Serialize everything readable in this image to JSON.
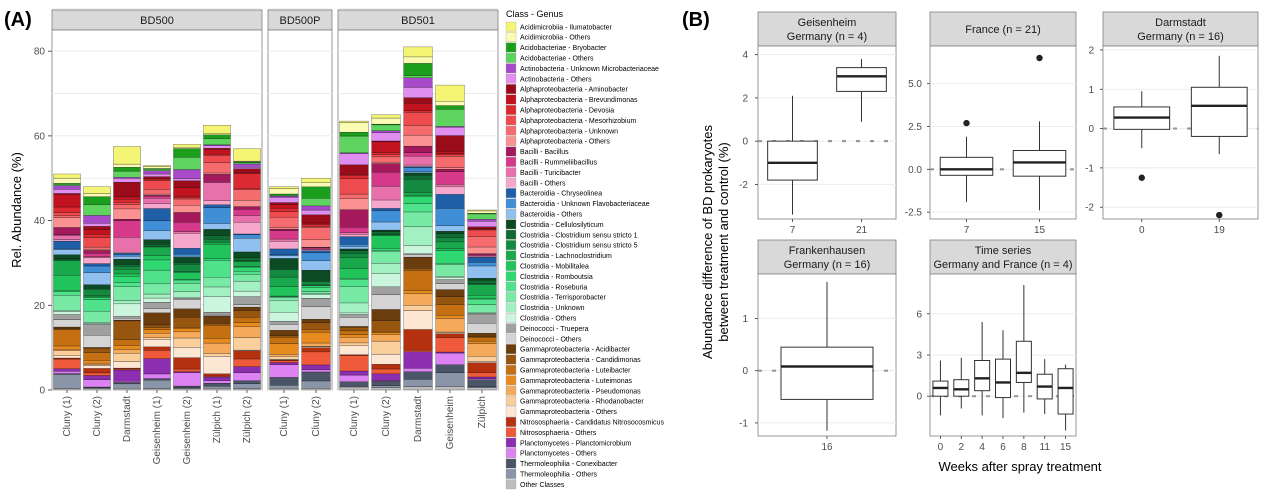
{
  "panel_a": {
    "label": "(A)",
    "ylabel": "Rel. Abundance (%)",
    "legend_title": "Class - Genus",
    "yticks": [
      0,
      20,
      40,
      60,
      80
    ],
    "ylim": [
      0,
      85
    ],
    "facets": [
      "BD500",
      "BD500P",
      "BD501"
    ]
  },
  "panel_b": {
    "label": "(B)",
    "ylabel_line1": "Abundance difference of BD prokaryotes",
    "ylabel_line2": "between treatment and control (%)",
    "xlabel": "Weeks after spray treatment"
  },
  "colors": {
    "strip": "#d9d9d9",
    "dashed_zero": "#999999",
    "box_line": "#333333"
  },
  "chart_data": [
    {
      "type": "bar",
      "stacked": true,
      "title": "(A)",
      "ylabel": "Rel. Abundance (%)",
      "ylim": [
        0,
        85
      ],
      "facets": [
        {
          "name": "BD500",
          "categories": [
            "Cluny (1)",
            "Cluny (2)",
            "Darmstadt",
            "Geisenheim (1)",
            "Geisenheim (2)",
            "Zülpich (1)",
            "Zülpich (2)"
          ],
          "totals": [
            51,
            48,
            57.5,
            53,
            58,
            62.5,
            57
          ]
        },
        {
          "name": "BD500P",
          "categories": [
            "Cluny (1)",
            "Cluny (2)"
          ],
          "totals": [
            48,
            50
          ]
        },
        {
          "name": "BD501",
          "categories": [
            "Cluny (1)",
            "Cluny (2)",
            "Darmstadt",
            "Geisenheim",
            "Zülpich"
          ],
          "totals": [
            63.5,
            65,
            81,
            72,
            42.5
          ]
        }
      ],
      "series": [
        {
          "name": "Acidimicrobiia - Ilumatobacter",
          "color": "#f5f575"
        },
        {
          "name": "Acidimicrobiia - Others",
          "color": "#fbfbb4"
        },
        {
          "name": "Acidobacteriae - Bryobacter",
          "color": "#1b9e1b"
        },
        {
          "name": "Acidobacteriae - Others",
          "color": "#5fd35f"
        },
        {
          "name": "Actinobacteria - Unknown Microbacteriaceae",
          "color": "#a64ac9"
        },
        {
          "name": "Actinobacteria - Others",
          "color": "#e08ef0"
        },
        {
          "name": "Alphaproteobacteria - Aminobacter",
          "color": "#9b0c1a"
        },
        {
          "name": "Alphaproteobacteria - Brevundimonas",
          "color": "#c0121f"
        },
        {
          "name": "Alphaproteobacteria - Devosia",
          "color": "#dc2a33"
        },
        {
          "name": "Alphaproteobacteria - Mesorhizobium",
          "color": "#ee4b4f"
        },
        {
          "name": "Alphaproteobacteria - Unknown",
          "color": "#f66c6e"
        },
        {
          "name": "Alphaproteobacteria - Others",
          "color": "#fb9191"
        },
        {
          "name": "Bacilli - Bacillus",
          "color": "#a3195b"
        },
        {
          "name": "Bacilli - Rummeliibacillus",
          "color": "#d6398a"
        },
        {
          "name": "Bacilli - Turicibacter",
          "color": "#e870ab"
        },
        {
          "name": "Bacilli - Others",
          "color": "#f5a8cb"
        },
        {
          "name": "Bacteroidia - Chryseolinea",
          "color": "#1f5fa8"
        },
        {
          "name": "Bacteroidia - Unknown Flavobacteriaceae",
          "color": "#3f8ed6"
        },
        {
          "name": "Bacteroidia - Others",
          "color": "#8fc0ef"
        },
        {
          "name": "Clostridia - Cellulosilyticum",
          "color": "#0b4a22"
        },
        {
          "name": "Clostridia - Clostridium sensu stricto 1",
          "color": "#0f6b31"
        },
        {
          "name": "Clostridia - Clostridium sensu stricto 5",
          "color": "#138a3f"
        },
        {
          "name": "Clostridia - Lachnoclostridium",
          "color": "#19a84c"
        },
        {
          "name": "Clostridia - Mobilitalea",
          "color": "#20c45b"
        },
        {
          "name": "Clostridia - Romboutsia",
          "color": "#2fd870"
        },
        {
          "name": "Clostridia - Roseburia",
          "color": "#4fe28a"
        },
        {
          "name": "Clostridia - Terrisporobacter",
          "color": "#79eaa6"
        },
        {
          "name": "Clostridia - Unknown",
          "color": "#a3f0c2"
        },
        {
          "name": "Clostridia - Others",
          "color": "#cbf6dd"
        },
        {
          "name": "Deinococci - Truepera",
          "color": "#a0a0a0"
        },
        {
          "name": "Deinococci - Others",
          "color": "#d4d4d4"
        },
        {
          "name": "Gammaproteobacteria - Acidibacter",
          "color": "#6b3d0e"
        },
        {
          "name": "Gammaproteobacteria - Candidimonas",
          "color": "#96560f"
        },
        {
          "name": "Gammaproteobacteria - Luteibacter",
          "color": "#c47012"
        },
        {
          "name": "Gammaproteobacteria - Luteimonas",
          "color": "#e88b1f"
        },
        {
          "name": "Gammaproteobacteria - Pseudomonas",
          "color": "#f5a95a"
        },
        {
          "name": "Gammaproteobacteria - Rhodanobacter",
          "color": "#fbcf9c"
        },
        {
          "name": "Gammaproteobacteria - Others",
          "color": "#fde6d2"
        },
        {
          "name": "Nitrososphaeria - Candidatus Nitrosocosmicus",
          "color": "#b5300e"
        },
        {
          "name": "Nitrososphaeria - Others",
          "color": "#ef5a3a"
        },
        {
          "name": "Planctomycetes - Planctomicrobium",
          "color": "#8b2fb0"
        },
        {
          "name": "Planctomycetes - Others",
          "color": "#dc82f2"
        },
        {
          "name": "Thermoleophilia - Conexibacter",
          "color": "#4a5568"
        },
        {
          "name": "Thermoleophilia - Others",
          "color": "#8a96a8"
        },
        {
          "name": "Other Classes",
          "color": "#bdbdbd"
        }
      ]
    },
    {
      "type": "box",
      "title": "Geisenheim Germany (n = 4)",
      "strip_line1": "Geisenheim",
      "strip_line2": "Germany (n = 4)",
      "yticks": [
        -2,
        0,
        2,
        4
      ],
      "ylim": [
        -3.6,
        4.4
      ],
      "groups": [
        {
          "x": "7",
          "q1": -1.8,
          "median": -1.0,
          "q3": 0.0,
          "whisker_low": -3.4,
          "whisker_high": 2.1,
          "outliers": []
        },
        {
          "x": "21",
          "q1": 2.3,
          "median": 3.0,
          "q3": 3.4,
          "whisker_low": 0.9,
          "whisker_high": 3.8,
          "outliers": []
        }
      ]
    },
    {
      "type": "box",
      "title": "France (n = 21)",
      "strip_line1": "France (n = 21)",
      "strip_line2": "",
      "yticks": [
        -2.5,
        0.0,
        2.5,
        5.0
      ],
      "yticklabels": [
        "-2.5",
        "0.0",
        "2.5",
        "5.0"
      ],
      "ylim": [
        -2.9,
        7.2
      ],
      "groups": [
        {
          "x": "7",
          "q1": -0.35,
          "median": 0.0,
          "q3": 0.7,
          "whisker_low": -1.9,
          "whisker_high": 1.9,
          "outliers": [
            2.7
          ]
        },
        {
          "x": "15",
          "q1": -0.4,
          "median": 0.4,
          "q3": 1.1,
          "whisker_low": -2.4,
          "whisker_high": 2.8,
          "outliers": [
            6.5
          ]
        }
      ]
    },
    {
      "type": "box",
      "title": "Darmstadt Germany (n = 16)",
      "strip_line1": "Darmstadt",
      "strip_line2": "Germany (n = 16)",
      "yticks": [
        -2,
        -1,
        0,
        1,
        2
      ],
      "ylim": [
        -2.3,
        2.1
      ],
      "groups": [
        {
          "x": "0",
          "q1": -0.02,
          "median": 0.28,
          "q3": 0.55,
          "whisker_low": -0.5,
          "whisker_high": 0.95,
          "outliers": [
            -1.25
          ]
        },
        {
          "x": "19",
          "q1": -0.2,
          "median": 0.58,
          "q3": 1.05,
          "whisker_low": -0.65,
          "whisker_high": 1.85,
          "outliers": [
            -2.2
          ]
        }
      ]
    },
    {
      "type": "box",
      "title": "Frankenhausen Germany (n = 16)",
      "strip_line1": "Frankenhausen",
      "strip_line2": "Germany (n = 16)",
      "yticks": [
        -1,
        0,
        1
      ],
      "ylim": [
        -1.25,
        1.85
      ],
      "groups": [
        {
          "x": "16",
          "q1": -0.55,
          "median": 0.08,
          "q3": 0.45,
          "whisker_low": -1.15,
          "whisker_high": 1.7,
          "outliers": []
        }
      ]
    },
    {
      "type": "box",
      "title": "Time series Germany and France (n = 4)",
      "strip_line1": "Time series",
      "strip_line2": "Germany and France (n = 4)",
      "yticks": [
        0,
        3,
        6
      ],
      "ylim": [
        -2.9,
        8.9
      ],
      "xlabel": "Weeks after spray treatment",
      "groups": [
        {
          "x": "0",
          "q1": 0.0,
          "median": 0.6,
          "q3": 1.1,
          "whisker_low": -1.4,
          "whisker_high": 2.6,
          "outliers": []
        },
        {
          "x": "2",
          "q1": 0.0,
          "median": 0.5,
          "q3": 1.2,
          "whisker_low": -0.9,
          "whisker_high": 2.8,
          "outliers": []
        },
        {
          "x": "4",
          "q1": 0.4,
          "median": 1.3,
          "q3": 2.6,
          "whisker_low": -1.4,
          "whisker_high": 5.4,
          "outliers": []
        },
        {
          "x": "6",
          "q1": -0.1,
          "median": 1.0,
          "q3": 2.7,
          "whisker_low": -1.6,
          "whisker_high": 4.8,
          "outliers": []
        },
        {
          "x": "8",
          "q1": 1.0,
          "median": 1.7,
          "q3": 4.0,
          "whisker_low": -1.2,
          "whisker_high": 8.1,
          "outliers": []
        },
        {
          "x": "11",
          "q1": -0.2,
          "median": 0.7,
          "q3": 1.6,
          "whisker_low": -1.3,
          "whisker_high": 2.7,
          "outliers": []
        },
        {
          "x": "15",
          "q1": -1.3,
          "median": 0.6,
          "q3": 2.0,
          "whisker_low": -2.5,
          "whisker_high": 2.3,
          "outliers": []
        }
      ]
    }
  ]
}
